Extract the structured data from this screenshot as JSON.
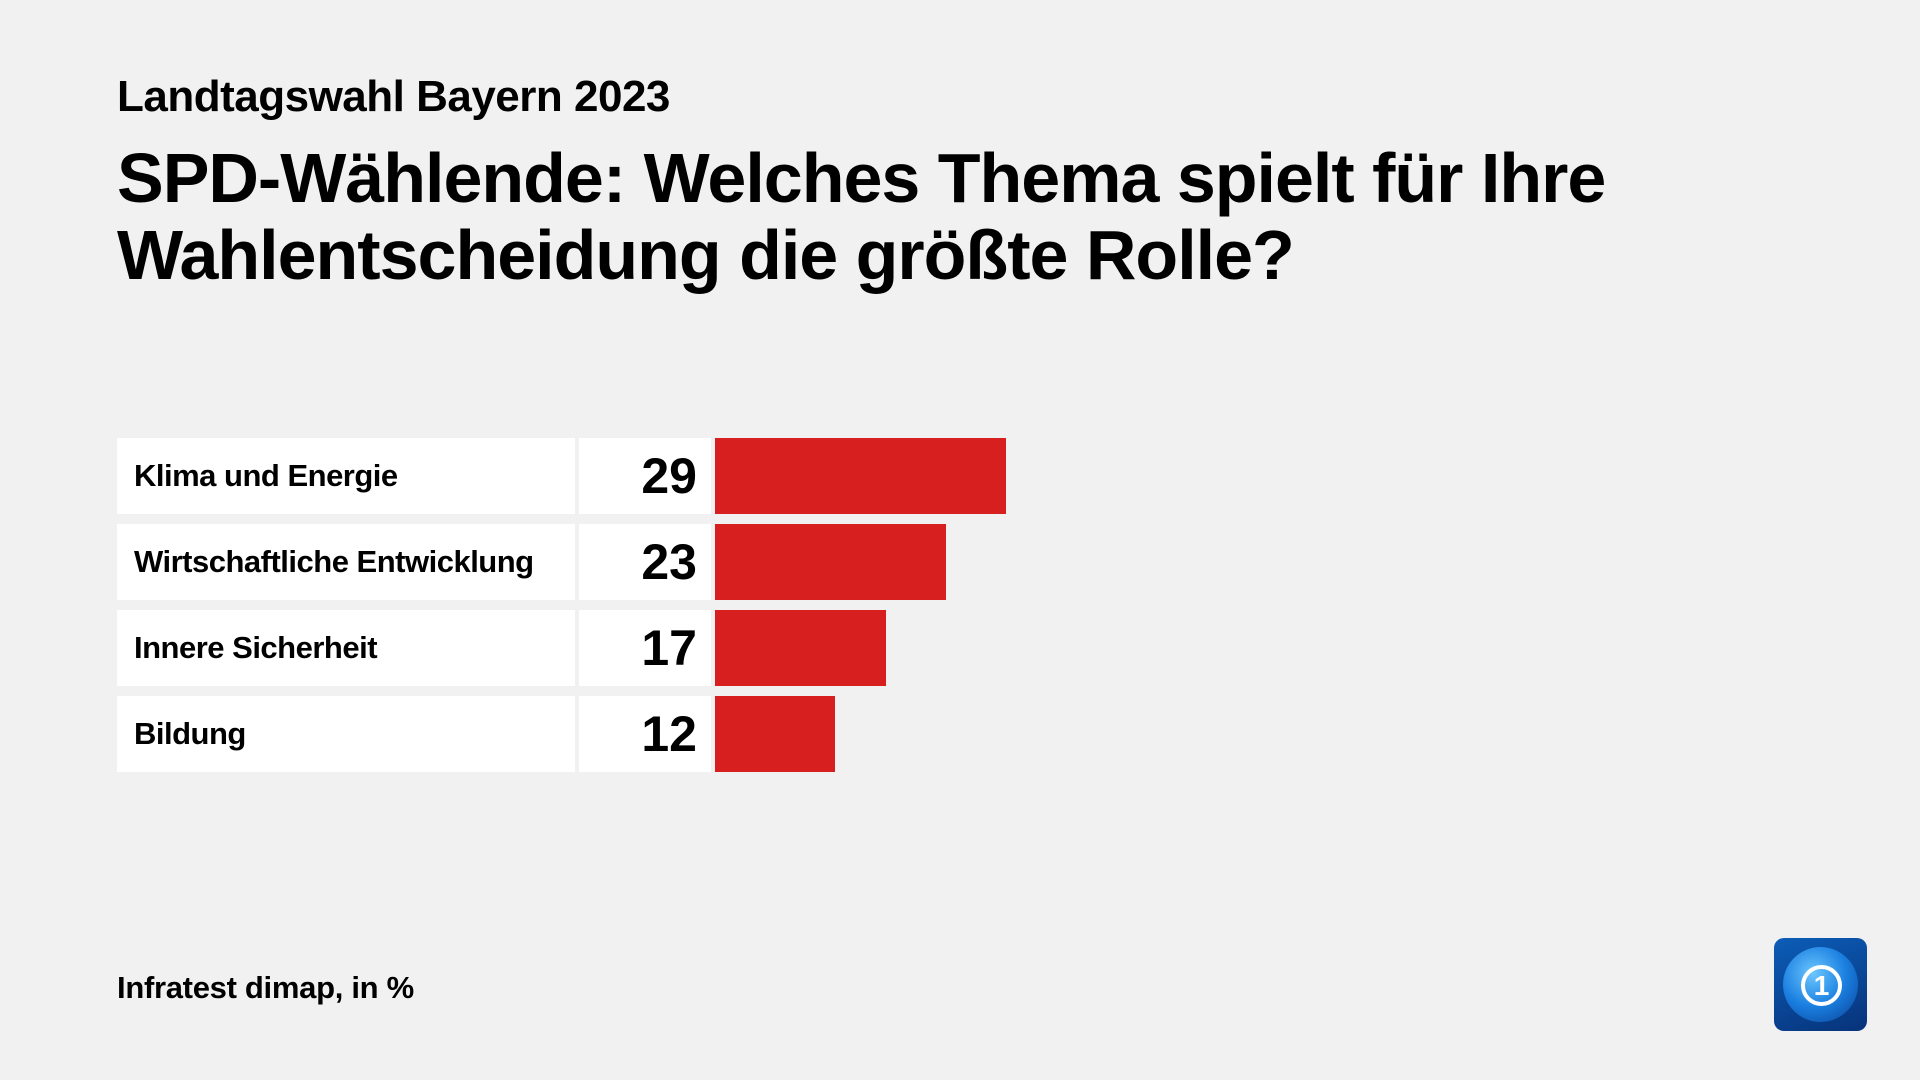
{
  "header": {
    "kicker": "Landtagswahl Bayern 2023",
    "title": "SPD-Wählende: Welches Thema spielt für Ihre Wahlentscheidung die größte Rolle?"
  },
  "chart_data": {
    "type": "bar",
    "orientation": "horizontal",
    "categories": [
      "Klima und Energie",
      "Wirtschaftliche Entwicklung",
      "Innere Sicherheit",
      "Bildung"
    ],
    "values": [
      29,
      23,
      17,
      12
    ],
    "value_labels": [
      "29",
      "23",
      "17",
      "12"
    ],
    "bar_color": "#d71f1f",
    "grid": false
  },
  "footer": {
    "source": "Infratest dimap, in %"
  },
  "logo": {
    "text": "1",
    "icon": "tagesschau-globe-logo"
  }
}
